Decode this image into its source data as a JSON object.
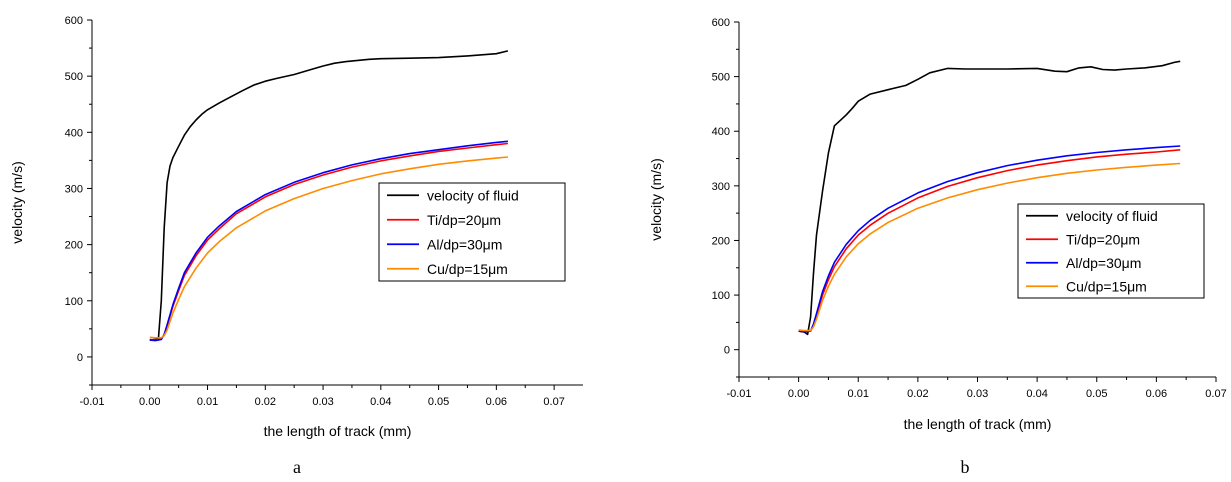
{
  "chart_data": [
    {
      "type": "line",
      "panel_label": "a",
      "xlabel": "the length of track (mm)",
      "ylabel": "velocity (m/s)",
      "xlim": [
        -0.01,
        0.075
      ],
      "ylim": [
        -50,
        600
      ],
      "xticks": [
        -0.01,
        0.0,
        0.01,
        0.02,
        0.03,
        0.04,
        0.05,
        0.06,
        0.07
      ],
      "xtick_labels": [
        "-0.01",
        "0.00",
        "0.01",
        "0.02",
        "0.03",
        "0.04",
        "0.05",
        "0.06",
        "0.07"
      ],
      "yticks": [
        0,
        100,
        200,
        300,
        400,
        500,
        600
      ],
      "ytick_labels": [
        "0",
        "100",
        "200",
        "300",
        "400",
        "500",
        "600"
      ],
      "grid": false,
      "legend_position": "center-right",
      "series": [
        {
          "name": "velocity of fluid",
          "color": "#000000",
          "x": [
            0.0,
            0.0015,
            0.002,
            0.0025,
            0.003,
            0.0035,
            0.004,
            0.005,
            0.006,
            0.007,
            0.008,
            0.009,
            0.01,
            0.012,
            0.014,
            0.016,
            0.018,
            0.02,
            0.022,
            0.025,
            0.028,
            0.03,
            0.032,
            0.034,
            0.036,
            0.038,
            0.04,
            0.045,
            0.05,
            0.055,
            0.06,
            0.062
          ],
          "y": [
            30,
            32,
            100,
            230,
            310,
            340,
            355,
            375,
            395,
            410,
            422,
            432,
            440,
            452,
            463,
            474,
            484,
            491,
            496,
            503,
            512,
            518,
            523,
            526,
            528,
            530,
            531,
            532,
            533,
            536,
            540,
            545
          ]
        },
        {
          "name": "Ti/dp=20μm",
          "color": "#ff0000",
          "x": [
            0.0,
            0.001,
            0.002,
            0.0025,
            0.003,
            0.004,
            0.005,
            0.006,
            0.008,
            0.01,
            0.012,
            0.015,
            0.02,
            0.025,
            0.03,
            0.035,
            0.04,
            0.045,
            0.05,
            0.055,
            0.06,
            0.062
          ],
          "y": [
            31,
            30,
            32,
            40,
            55,
            90,
            118,
            145,
            180,
            208,
            228,
            255,
            285,
            307,
            324,
            338,
            349,
            358,
            366,
            372,
            378,
            380
          ]
        },
        {
          "name": "Al/dp=30μm",
          "color": "#0000ff",
          "x": [
            0.0,
            0.001,
            0.002,
            0.0025,
            0.003,
            0.004,
            0.005,
            0.006,
            0.008,
            0.01,
            0.012,
            0.015,
            0.02,
            0.025,
            0.03,
            0.035,
            0.04,
            0.045,
            0.05,
            0.055,
            0.06,
            0.062
          ],
          "y": [
            30,
            29,
            31,
            40,
            57,
            93,
            122,
            150,
            185,
            213,
            233,
            259,
            289,
            311,
            328,
            342,
            353,
            362,
            369,
            376,
            382,
            384
          ]
        },
        {
          "name": "Cu/dp=15μm",
          "color": "#ff8c00",
          "x": [
            0.0,
            0.001,
            0.002,
            0.0025,
            0.003,
            0.004,
            0.005,
            0.006,
            0.008,
            0.01,
            0.012,
            0.015,
            0.02,
            0.025,
            0.03,
            0.035,
            0.04,
            0.045,
            0.05,
            0.055,
            0.06,
            0.062
          ],
          "y": [
            35,
            34,
            34,
            38,
            48,
            78,
            102,
            125,
            158,
            185,
            205,
            230,
            260,
            282,
            300,
            314,
            326,
            335,
            343,
            349,
            354,
            356
          ]
        }
      ]
    },
    {
      "type": "line",
      "panel_label": "b",
      "xlabel": "the length of track (mm)",
      "ylabel": "velocity (m/s)",
      "xlim": [
        -0.01,
        0.07
      ],
      "ylim": [
        -50,
        600
      ],
      "xticks": [
        -0.01,
        0.0,
        0.01,
        0.02,
        0.03,
        0.04,
        0.05,
        0.06,
        0.07
      ],
      "xtick_labels": [
        "-0.01",
        "0.00",
        "0.01",
        "0.02",
        "0.03",
        "0.04",
        "0.05",
        "0.06",
        "0.07"
      ],
      "yticks": [
        0,
        100,
        200,
        300,
        400,
        500,
        600
      ],
      "ytick_labels": [
        "0",
        "100",
        "200",
        "300",
        "400",
        "500",
        "600"
      ],
      "grid": false,
      "legend_position": "center-right",
      "series": [
        {
          "name": "velocity of fluid",
          "color": "#000000",
          "x": [
            0.0,
            0.001,
            0.0015,
            0.002,
            0.0025,
            0.003,
            0.004,
            0.005,
            0.006,
            0.007,
            0.008,
            0.009,
            0.01,
            0.012,
            0.015,
            0.018,
            0.02,
            0.022,
            0.025,
            0.028,
            0.03,
            0.035,
            0.04,
            0.043,
            0.045,
            0.047,
            0.049,
            0.051,
            0.053,
            0.055,
            0.058,
            0.061,
            0.063,
            0.064
          ],
          "y": [
            34,
            32,
            28,
            60,
            140,
            210,
            290,
            360,
            410,
            420,
            430,
            442,
            455,
            468,
            476,
            484,
            495,
            507,
            515,
            514,
            514,
            514,
            515,
            510,
            509,
            516,
            518,
            513,
            512,
            514,
            516,
            520,
            526,
            528
          ]
        },
        {
          "name": "Ti/dp=20μm",
          "color": "#ff0000",
          "x": [
            0.0,
            0.001,
            0.002,
            0.0025,
            0.003,
            0.004,
            0.005,
            0.006,
            0.008,
            0.01,
            0.012,
            0.015,
            0.02,
            0.025,
            0.03,
            0.035,
            0.04,
            0.045,
            0.05,
            0.055,
            0.06,
            0.064
          ],
          "y": [
            34,
            33,
            34,
            45,
            62,
            100,
            128,
            152,
            185,
            210,
            228,
            250,
            278,
            299,
            315,
            328,
            338,
            346,
            353,
            358,
            362,
            366
          ]
        },
        {
          "name": "Al/dp=30μm",
          "color": "#0000ff",
          "x": [
            0.0,
            0.001,
            0.002,
            0.0025,
            0.003,
            0.004,
            0.005,
            0.006,
            0.008,
            0.01,
            0.012,
            0.015,
            0.02,
            0.025,
            0.03,
            0.035,
            0.04,
            0.045,
            0.05,
            0.055,
            0.06,
            0.064
          ],
          "y": [
            34,
            33,
            34,
            47,
            66,
            106,
            135,
            160,
            193,
            218,
            237,
            259,
            287,
            308,
            324,
            337,
            347,
            355,
            361,
            366,
            370,
            373
          ]
        },
        {
          "name": "Cu/dp=15μm",
          "color": "#ff8c00",
          "x": [
            0.0,
            0.001,
            0.002,
            0.0025,
            0.003,
            0.004,
            0.005,
            0.006,
            0.008,
            0.01,
            0.012,
            0.015,
            0.02,
            0.025,
            0.03,
            0.035,
            0.04,
            0.045,
            0.05,
            0.055,
            0.06,
            0.064
          ],
          "y": [
            36,
            35,
            35,
            42,
            56,
            90,
            116,
            138,
            170,
            194,
            212,
            233,
            259,
            278,
            293,
            305,
            315,
            323,
            329,
            334,
            338,
            341
          ]
        }
      ]
    }
  ]
}
